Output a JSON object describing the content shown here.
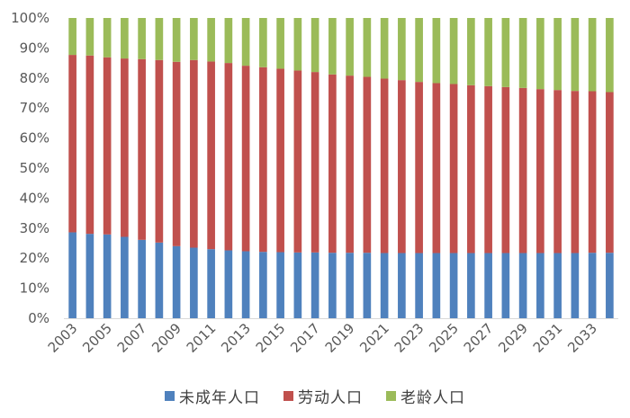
{
  "chart_data": {
    "type": "bar",
    "stacked": true,
    "percent": true,
    "categories": [
      "2003",
      "2004",
      "2005",
      "2006",
      "2007",
      "2008",
      "2009",
      "2010",
      "2011",
      "2012",
      "2013",
      "2014",
      "2015",
      "2016",
      "2017",
      "2018",
      "2019",
      "2020",
      "2021",
      "2022",
      "2023",
      "2024",
      "2025",
      "2026",
      "2027",
      "2028",
      "2029",
      "2030",
      "2031",
      "2032",
      "2033",
      "2034"
    ],
    "x_tick_labels": [
      "2003",
      "2005",
      "2007",
      "2009",
      "2011",
      "2013",
      "2015",
      "2017",
      "2019",
      "2021",
      "2023",
      "2025",
      "2027",
      "2029",
      "2031",
      "2033"
    ],
    "y_tick_labels": [
      "0%",
      "10%",
      "20%",
      "30%",
      "40%",
      "50%",
      "60%",
      "70%",
      "80%",
      "90%",
      "100%"
    ],
    "ylim": [
      0,
      100
    ],
    "grid": false,
    "legend_position": "bottom",
    "series": [
      {
        "name": "未成年人口",
        "color": "#4f81bd",
        "values": [
          28.6,
          28.1,
          27.9,
          27.1,
          26.1,
          25.2,
          24.0,
          23.5,
          23.0,
          22.6,
          22.3,
          22.1,
          22.0,
          21.9,
          21.9,
          21.8,
          21.8,
          21.8,
          21.7,
          21.7,
          21.7,
          21.7,
          21.7,
          21.7,
          21.7,
          21.7,
          21.7,
          21.7,
          21.7,
          21.7,
          21.8,
          21.8
        ]
      },
      {
        "name": "劳动人口",
        "color": "#c0504d",
        "values": [
          59.1,
          59.4,
          59.0,
          59.4,
          60.2,
          60.8,
          61.4,
          62.5,
          62.5,
          62.4,
          61.8,
          61.5,
          61.1,
          60.6,
          60.1,
          59.4,
          59.0,
          58.6,
          58.1,
          57.6,
          57.0,
          56.6,
          56.3,
          55.9,
          55.6,
          55.3,
          55.0,
          54.6,
          54.3,
          54.0,
          53.8,
          53.5
        ]
      },
      {
        "name": "老龄人口",
        "color": "#9bbb59",
        "values": [
          12.3,
          12.5,
          13.1,
          13.5,
          13.7,
          14.0,
          14.6,
          14.0,
          14.5,
          15.0,
          15.9,
          16.4,
          16.9,
          17.5,
          18.0,
          18.8,
          19.2,
          19.6,
          20.2,
          20.7,
          21.3,
          21.7,
          22.0,
          22.4,
          22.7,
          23.0,
          23.3,
          23.7,
          24.0,
          24.3,
          24.4,
          24.7
        ]
      }
    ]
  }
}
